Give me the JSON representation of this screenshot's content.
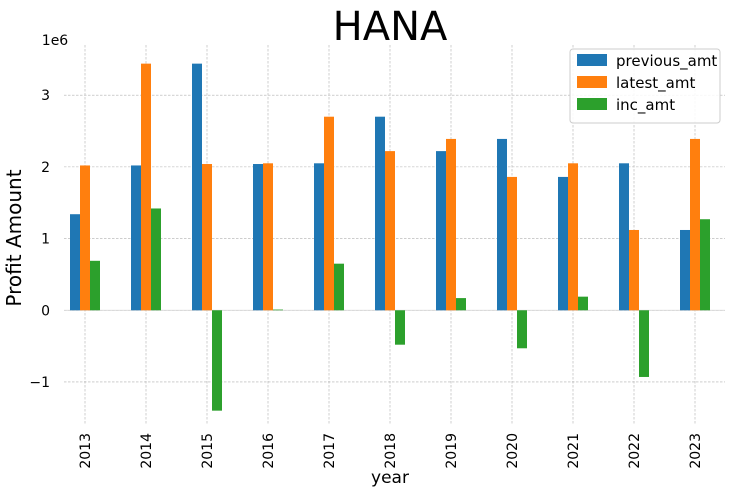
{
  "chart_data": {
    "type": "bar",
    "title": "HANA",
    "xlabel": "year",
    "ylabel": "Profit Amount",
    "y_offset_label": "1e6",
    "categories": [
      "2013",
      "2014",
      "2015",
      "2016",
      "2017",
      "2018",
      "2019",
      "2020",
      "2021",
      "2022",
      "2023"
    ],
    "series": [
      {
        "name": "previous_amt",
        "color": "#1f77b4",
        "values": [
          1340000,
          2020000,
          3440000,
          2040000,
          2050000,
          2700000,
          2220000,
          2390000,
          1860000,
          2050000,
          1120000
        ]
      },
      {
        "name": "latest_amt",
        "color": "#ff7f0e",
        "values": [
          2020000,
          3440000,
          2040000,
          2050000,
          2700000,
          2220000,
          2390000,
          1860000,
          2050000,
          1120000,
          2390000
        ]
      },
      {
        "name": "inc_amt",
        "color": "#2ca02c",
        "values": [
          690000,
          1420000,
          -1400000,
          10000,
          650000,
          -480000,
          170000,
          -530000,
          190000,
          -930000,
          1270000
        ]
      }
    ],
    "ylim": [
      -1600000,
      3700000
    ],
    "yticks": [
      -1000000,
      0,
      1000000,
      2000000,
      3000000
    ],
    "ytick_labels": [
      "−1",
      "0",
      "1",
      "2",
      "3"
    ],
    "grid": true,
    "legend_position": "top-right"
  }
}
